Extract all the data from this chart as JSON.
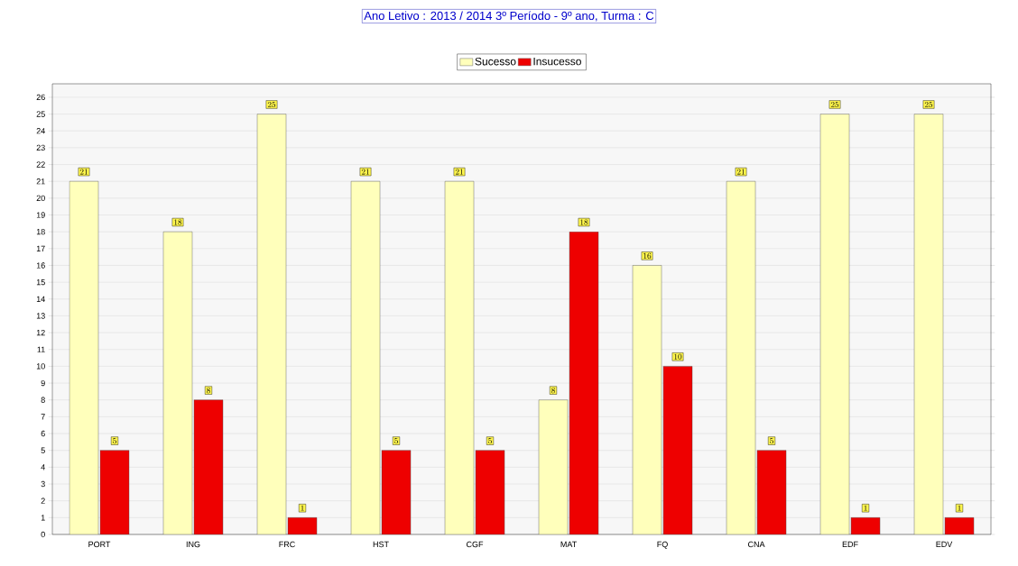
{
  "chart_data": {
    "type": "bar",
    "title": "Ano Letivo : 2013 / 2014      3º Período - 9º ano, Turma : C",
    "categories": [
      "PORT",
      "ING",
      "FRC",
      "HST",
      "CGF",
      "MAT",
      "FQ",
      "CNA",
      "EDF",
      "EDV"
    ],
    "series": [
      {
        "name": "Sucesso",
        "color": "#ffffbb",
        "values": [
          21,
          18,
          25,
          21,
          21,
          8,
          16,
          21,
          25,
          25
        ]
      },
      {
        "name": "Insucesso",
        "color": "#ee0000",
        "values": [
          5,
          8,
          1,
          5,
          5,
          18,
          10,
          5,
          1,
          1
        ]
      }
    ],
    "ylim": [
      0,
      26.8
    ],
    "yticks": [
      0,
      1,
      2,
      3,
      4,
      5,
      6,
      7,
      8,
      9,
      10,
      11,
      12,
      13,
      14,
      15,
      16,
      17,
      18,
      19,
      20,
      21,
      22,
      23,
      24,
      25,
      26
    ],
    "grid": "y",
    "legend": "top",
    "data_labels": true
  }
}
